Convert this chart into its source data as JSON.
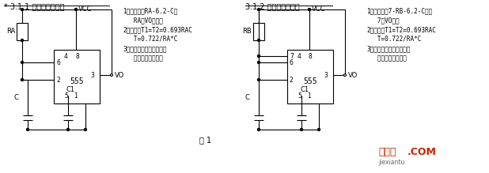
{
  "bg_color": "#f0f0f0",
  "title1": "* 3.1.1 直接反馈型无稳",
  "title2": "3.1.2 直接反馈型无稳",
  "fig1_label": "图 1",
  "text_left": [
    "1）特点：「RA-6.2-C」",
    "   RA与VO相连。",
    "2）公式：T1=T2=0.693RAC",
    "   T=0.722/RA*C",
    "3）用途：方波输出，音响",
    "   告警，电源变换等"
  ],
  "text_right": [
    "1）特点：「7-RB-6.2-C」，",
    "   7与VO相联",
    "2）公式：T1=T2=0.693RAC",
    "   T=0.722/RA*C",
    "3）用途：方波输出，音响",
    "   告警，电源变换等"
  ],
  "line_color": "#000000",
  "bg_white": "#ffffff",
  "watermark1": "接线图",
  "watermark2": ".COM",
  "watermark3": "jiexiantu"
}
